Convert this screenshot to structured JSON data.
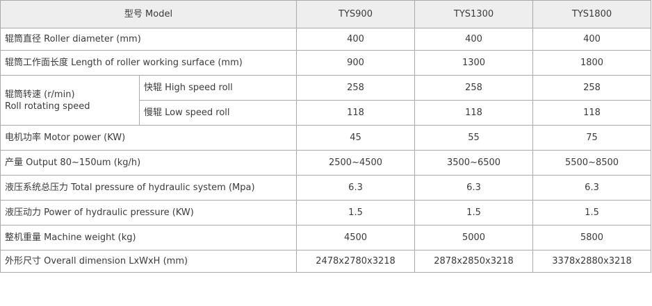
{
  "table": {
    "header": {
      "model_label": "型号 Model",
      "models": [
        "TYS900",
        "TYS1300",
        "TYS1800"
      ]
    },
    "rows": {
      "roller_diameter": {
        "label": "辊筒直径 Roller diameter (mm)",
        "values": [
          "400",
          "400",
          "400"
        ]
      },
      "working_surface": {
        "label": "辊筒工作面长度 Length of roller working surface (mm)",
        "values": [
          "900",
          "1300",
          "1800"
        ]
      },
      "rotating_speed": {
        "label_cn": "辊筒转速 (r/min)",
        "label_en": "Roll rotating speed",
        "high": {
          "label": "快辊 High speed roll",
          "values": [
            "258",
            "258",
            "258"
          ]
        },
        "low": {
          "label": "慢辊 Low speed roll",
          "values": [
            "118",
            "118",
            "118"
          ]
        }
      },
      "motor_power": {
        "label": "电机功率 Motor power (KW)",
        "values": [
          "45",
          "55",
          "75"
        ]
      },
      "output": {
        "label": "产量 Output 80~150um (kg/h)",
        "values": [
          "2500~4500",
          "3500~6500",
          "5500~8500"
        ]
      },
      "hydraulic_total": {
        "label": "液压系统总压力 Total pressure of hydraulic system (Mpa)",
        "values": [
          "6.3",
          "6.3",
          "6.3"
        ]
      },
      "hydraulic_power": {
        "label": "液压动力 Power of hydraulic pressure (KW)",
        "values": [
          "1.5",
          "1.5",
          "1.5"
        ]
      },
      "machine_weight": {
        "label": "整机重量 Machine weight (kg)",
        "values": [
          "4500",
          "5000",
          "5800"
        ]
      },
      "overall_dimension": {
        "label": "外形尺寸 Overall dimension LxWxH (mm)",
        "values": [
          "2478x2780x3218",
          "2878x2850x3218",
          "3378x2880x3218"
        ]
      }
    }
  }
}
